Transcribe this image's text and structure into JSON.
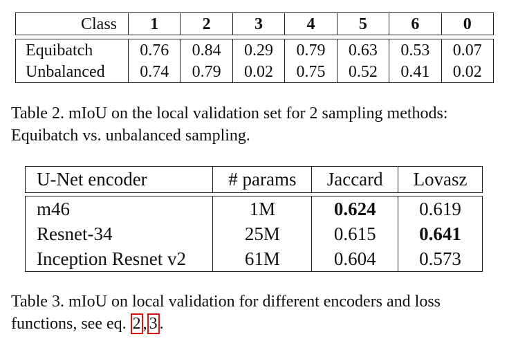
{
  "table2": {
    "header": [
      "Class",
      "1",
      "2",
      "3",
      "4",
      "5",
      "6",
      "0"
    ],
    "rows": [
      {
        "label": "Equibatch",
        "values": [
          "0.76",
          "0.84",
          "0.29",
          "0.79",
          "0.63",
          "0.53",
          "0.07"
        ]
      },
      {
        "label": "Unbalanced",
        "values": [
          "0.74",
          "0.79",
          "0.02",
          "0.75",
          "0.52",
          "0.41",
          "0.02"
        ]
      }
    ],
    "caption_line1": "Table 2. mIoU on the local validation set for 2 sampling methods:",
    "caption_line2": "Equibatch vs. unbalanced sampling."
  },
  "table3": {
    "header": [
      "U-Net encoder",
      "# params",
      "Jaccard",
      "Lovasz"
    ],
    "rows": [
      {
        "encoder": "m46",
        "params": "1M",
        "jaccard": "0.624",
        "lovasz": "0.619"
      },
      {
        "encoder": "Resnet-34",
        "params": "25M",
        "jaccard": "0.615",
        "lovasz": "0.641"
      },
      {
        "encoder": "Inception Resnet v2",
        "params": "61M",
        "jaccard": "0.604",
        "lovasz": "0.573"
      }
    ],
    "caption_line1": "Table 3. mIoU on local validation for different encoders and loss",
    "caption_line2_prefix": "functions, see eq. ",
    "ref_a": "2",
    "separator": ",",
    "ref_b": "3",
    "caption_end": "."
  }
}
